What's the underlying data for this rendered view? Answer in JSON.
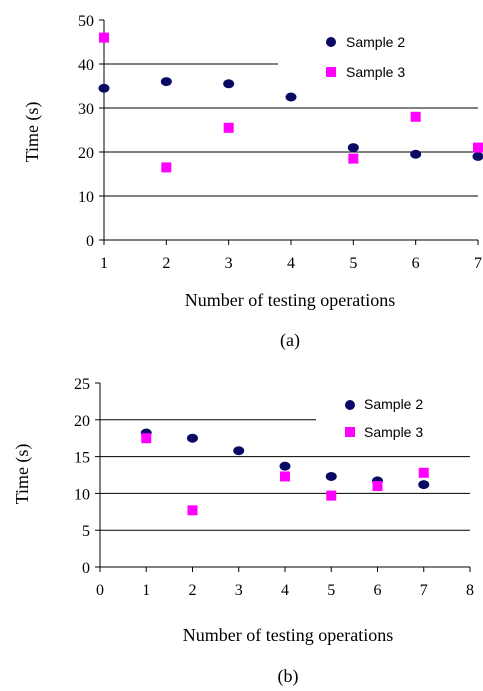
{
  "colors": {
    "sample2": "#0a0a64",
    "sample3": "#ff00ff",
    "grid": "#000000"
  },
  "chart_data": [
    {
      "type": "scatter",
      "caption": "(a)",
      "xlabel": "Number of testing operations",
      "ylabel": "Time (s)",
      "xlim": [
        1,
        7
      ],
      "ylim": [
        0,
        50
      ],
      "xticks": [
        "1",
        "2",
        "3",
        "4",
        "5",
        "6",
        "7"
      ],
      "yticks": [
        "0",
        "10",
        "20",
        "30",
        "40",
        "50"
      ],
      "grid": true,
      "legend": "top-right",
      "series": [
        {
          "name": "Sample 2",
          "marker": "circle",
          "x": [
            1,
            2,
            3,
            4,
            5,
            6,
            7
          ],
          "y": [
            34.5,
            36,
            35.5,
            32.5,
            21,
            19.5,
            19
          ]
        },
        {
          "name": "Sample 3",
          "marker": "square",
          "x": [
            1,
            2,
            3,
            5,
            6,
            7
          ],
          "y": [
            46,
            16.5,
            25.5,
            18.5,
            28,
            21
          ]
        }
      ]
    },
    {
      "type": "scatter",
      "caption": "(b)",
      "xlabel": "Number of testing operations",
      "ylabel": "Time (s)",
      "xlim": [
        0,
        8
      ],
      "ylim": [
        0,
        25
      ],
      "xticks": [
        "0",
        "1",
        "2",
        "3",
        "4",
        "5",
        "6",
        "7",
        "8"
      ],
      "yticks": [
        "0",
        "5",
        "10",
        "15",
        "20",
        "25"
      ],
      "grid": true,
      "legend": "top-right",
      "series": [
        {
          "name": "Sample 2",
          "marker": "circle",
          "x": [
            1,
            2,
            3,
            4,
            5,
            6,
            7
          ],
          "y": [
            18.2,
            17.5,
            15.8,
            13.7,
            12.3,
            11.7,
            11.2
          ]
        },
        {
          "name": "Sample 3",
          "marker": "square",
          "x": [
            1,
            2,
            4,
            5,
            6,
            7
          ],
          "y": [
            17.5,
            7.7,
            12.3,
            9.7,
            11,
            12.8
          ]
        }
      ]
    }
  ]
}
